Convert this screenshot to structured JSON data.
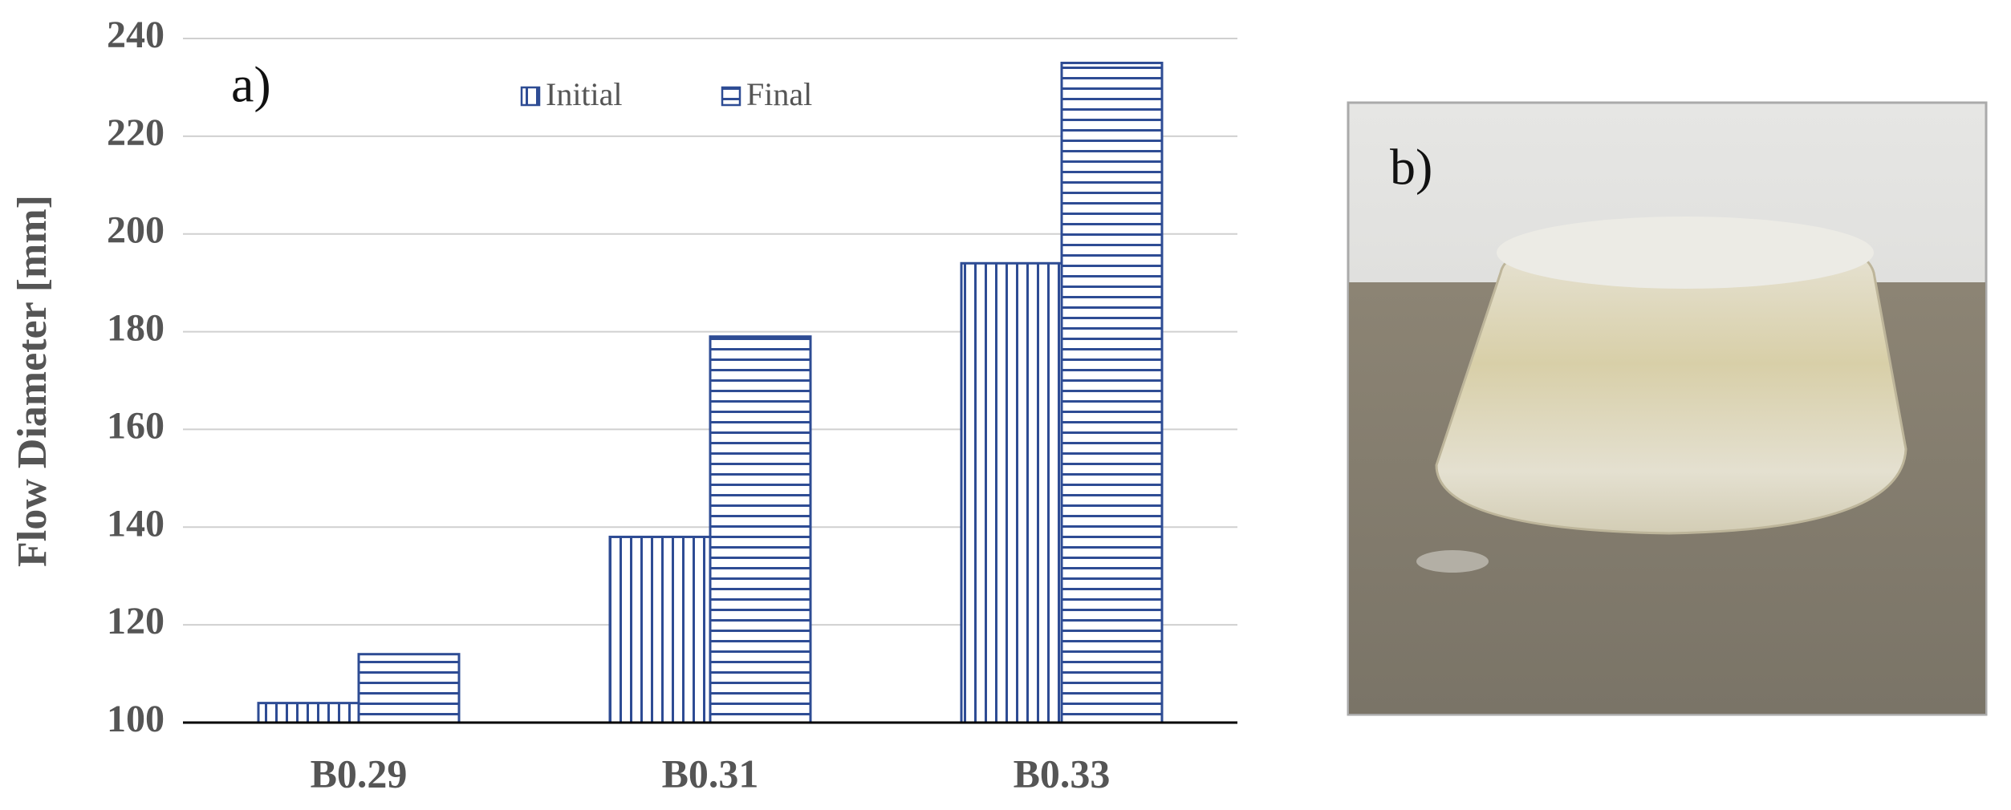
{
  "chart_data": {
    "type": "bar",
    "y_label": "Flow Diameter [mm]",
    "annotation": "a)",
    "categories": [
      "B0.29",
      "B0.31",
      "B0.33"
    ],
    "series": [
      {
        "name": "Initial",
        "color": "#2e4c94",
        "hatch": "vertical",
        "values": [
          104,
          138,
          194
        ]
      },
      {
        "name": "Final",
        "color": "#2e4c94",
        "hatch": "horizontal",
        "values": [
          114,
          179,
          235
        ]
      }
    ],
    "ylim": [
      100,
      240
    ],
    "yticks": [
      100,
      120,
      140,
      160,
      180,
      200,
      220,
      240
    ],
    "grid": true
  },
  "photo": {
    "label": "b)"
  }
}
